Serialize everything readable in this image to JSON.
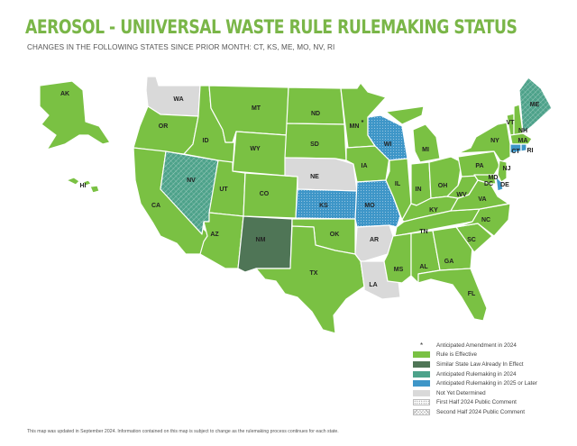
{
  "title": "AEROSOL - UNIIVERSAL WASTE RULE RULEMAKING STATUS",
  "subtitle": "CHANGES IN THE FOLLOWING STATES SINCE PRIOR MONTH: CT, KS, ME, MO, NV, RI",
  "colors": {
    "effective": "#7ac143",
    "similar": "#4f7556",
    "anticipated_2024": "#4da28a",
    "anticipated_2025": "#3e96c8",
    "not_determined": "#d9d9d9"
  },
  "legend": [
    {
      "key": "amendment",
      "label": "Anticipated Amendment in 2024",
      "marker": "*"
    },
    {
      "key": "effective",
      "label": "Rule is Effective"
    },
    {
      "key": "similar",
      "label": "Similar State Law Already In Effect"
    },
    {
      "key": "anticipated_2024",
      "label": "Anticipated Rulemaking in 2024"
    },
    {
      "key": "anticipated_2025",
      "label": "Anticipated Rulemaking in 2025 or Later"
    },
    {
      "key": "not_determined",
      "label": "Not Yet Determined"
    },
    {
      "key": "first_half",
      "label": "First Half 2024 Public Comment"
    },
    {
      "key": "second_half",
      "label": "Second Half 2024 Public Comment"
    }
  ],
  "states": {
    "AK": {
      "label": "AK",
      "status": "effective"
    },
    "HI": {
      "label": "HI",
      "status": "effective"
    },
    "WA": {
      "label": "WA",
      "status": "not_determined"
    },
    "OR": {
      "label": "OR",
      "status": "effective"
    },
    "CA": {
      "label": "CA",
      "status": "effective"
    },
    "NV": {
      "label": "NV",
      "status": "anticipated_2024",
      "pattern": "second_half"
    },
    "ID": {
      "label": "ID",
      "status": "effective"
    },
    "MT": {
      "label": "MT",
      "status": "effective"
    },
    "WY": {
      "label": "WY",
      "status": "effective"
    },
    "UT": {
      "label": "UT",
      "status": "effective"
    },
    "CO": {
      "label": "CO",
      "status": "effective"
    },
    "AZ": {
      "label": "AZ",
      "status": "effective"
    },
    "NM": {
      "label": "NM",
      "status": "similar"
    },
    "ND": {
      "label": "ND",
      "status": "effective"
    },
    "SD": {
      "label": "SD",
      "status": "effective"
    },
    "NE": {
      "label": "NE",
      "status": "not_determined"
    },
    "KS": {
      "label": "KS",
      "status": "anticipated_2025",
      "pattern": "first_half"
    },
    "OK": {
      "label": "OK",
      "status": "effective"
    },
    "TX": {
      "label": "TX",
      "status": "effective"
    },
    "MN": {
      "label": "MN",
      "status": "effective",
      "amendment": true
    },
    "IA": {
      "label": "IA",
      "status": "effective"
    },
    "MO": {
      "label": "MO",
      "status": "anticipated_2025",
      "pattern": "first_half"
    },
    "AR": {
      "label": "AR",
      "status": "not_determined"
    },
    "LA": {
      "label": "LA",
      "status": "not_determined"
    },
    "WI": {
      "label": "WI",
      "status": "anticipated_2025",
      "pattern": "first_half"
    },
    "IL": {
      "label": "IL",
      "status": "effective"
    },
    "MI": {
      "label": "MI",
      "status": "effective"
    },
    "IN": {
      "label": "IN",
      "status": "effective"
    },
    "OH": {
      "label": "OH",
      "status": "effective"
    },
    "KY": {
      "label": "KY",
      "status": "effective"
    },
    "TN": {
      "label": "TN",
      "status": "effective"
    },
    "MS": {
      "label": "MS",
      "status": "effective"
    },
    "AL": {
      "label": "AL",
      "status": "effective"
    },
    "GA": {
      "label": "GA",
      "status": "effective"
    },
    "FL": {
      "label": "FL",
      "status": "effective"
    },
    "SC": {
      "label": "SC",
      "status": "effective"
    },
    "NC": {
      "label": "NC",
      "status": "effective"
    },
    "VA": {
      "label": "VA",
      "status": "effective"
    },
    "WV": {
      "label": "WV",
      "status": "effective"
    },
    "PA": {
      "label": "PA",
      "status": "effective"
    },
    "NY": {
      "label": "NY",
      "status": "effective"
    },
    "NJ": {
      "label": "NJ",
      "status": "effective"
    },
    "DE": {
      "label": "DE",
      "status": "anticipated_2025"
    },
    "MD": {
      "label": "MD",
      "status": "effective"
    },
    "DC": {
      "label": "DC",
      "status": "effective"
    },
    "CT": {
      "label": "CT",
      "status": "anticipated_2025"
    },
    "RI": {
      "label": "RI",
      "status": "anticipated_2025"
    },
    "MA": {
      "label": "MA",
      "status": "effective"
    },
    "VT": {
      "label": "VT",
      "status": "effective"
    },
    "NH": {
      "label": "NH",
      "status": "effective"
    },
    "ME": {
      "label": "ME",
      "status": "anticipated_2024",
      "pattern": "second_half"
    }
  },
  "footnote": "This map was updated in September 2024. Information contained on this map is subject to change as the rulemaking process continues for each state."
}
